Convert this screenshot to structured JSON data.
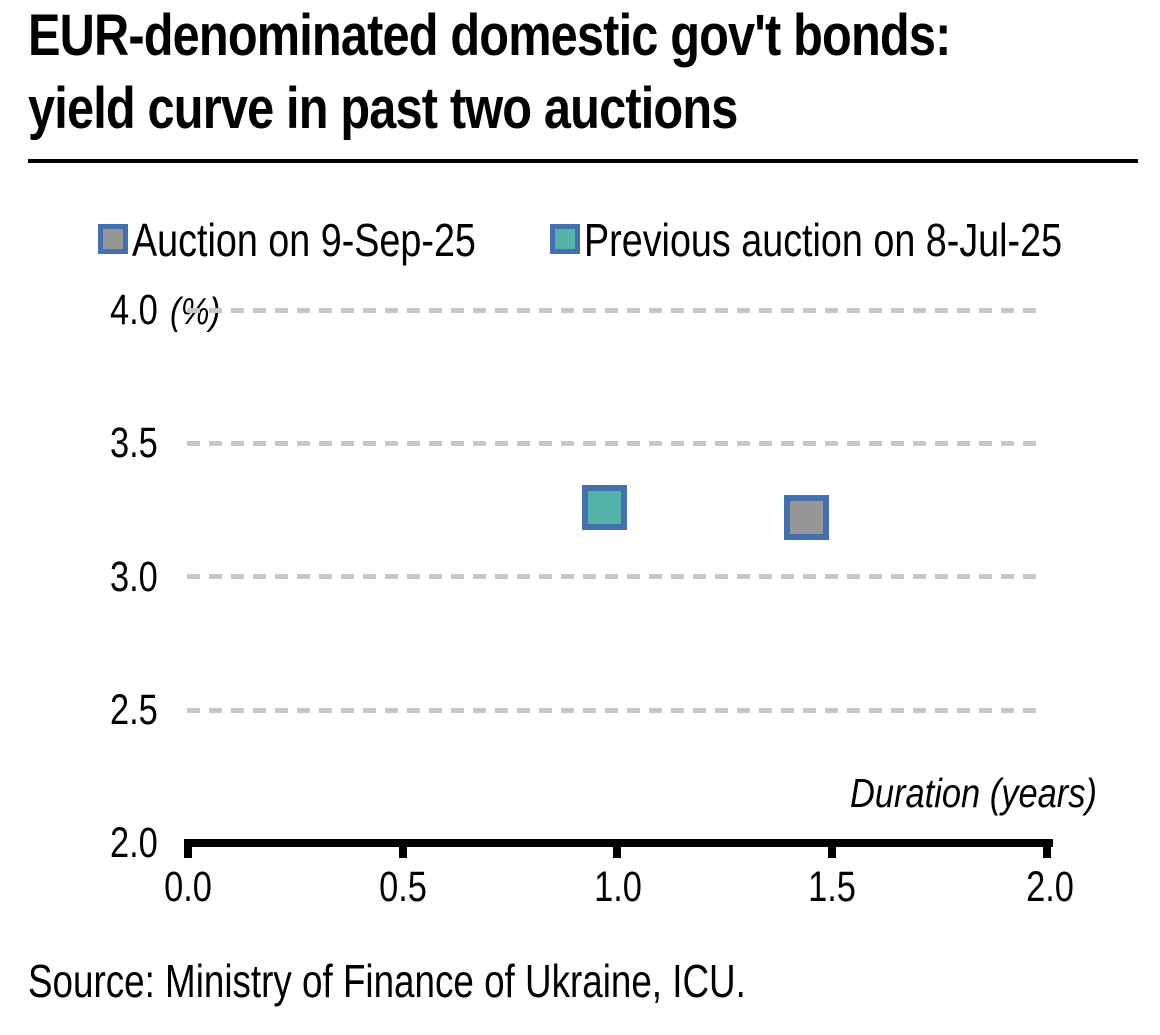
{
  "title": {
    "line1": "EUR-denominated domestic gov't bonds:",
    "line2": "yield curve in past two auctions"
  },
  "legend": {
    "items": [
      {
        "label": "Auction on 9-Sep-25",
        "fill": "#969696",
        "border": "#4471ad"
      },
      {
        "label": "Previous auction on 8-Jul-25",
        "fill": "#53b3a9",
        "border": "#4471ad"
      }
    ]
  },
  "y_axis": {
    "unit_label": "(%)",
    "ticks": [
      "4.0",
      "3.5",
      "3.0",
      "2.5",
      "2.0"
    ]
  },
  "x_axis": {
    "label": "Duration (years)",
    "ticks": [
      "0.0",
      "0.5",
      "1.0",
      "1.5",
      "2.0"
    ]
  },
  "source_note": "Source: Ministry of Finance of Ukraine, ICU.",
  "chart_data": {
    "type": "scatter",
    "title": "EUR-denominated domestic gov't bonds: yield curve in past two auctions",
    "xlabel": "Duration (years)",
    "ylabel": "(%)",
    "xlim": [
      0.0,
      2.0
    ],
    "ylim": [
      2.0,
      4.0
    ],
    "x_ticks": [
      0.0,
      0.5,
      1.0,
      1.5,
      2.0
    ],
    "y_ticks": [
      2.0,
      2.5,
      3.0,
      3.5,
      4.0
    ],
    "grid": "horizontal dashed",
    "legend_position": "top",
    "marker": "square",
    "series": [
      {
        "name": "Auction on 9-Sep-25",
        "fill": "#969696",
        "border": "#4471ad",
        "points": [
          {
            "x": 1.44,
            "y": 3.22
          }
        ]
      },
      {
        "name": "Previous auction on 8-Jul-25",
        "fill": "#53b3a9",
        "border": "#4471ad",
        "points": [
          {
            "x": 0.97,
            "y": 3.26
          }
        ]
      }
    ]
  }
}
